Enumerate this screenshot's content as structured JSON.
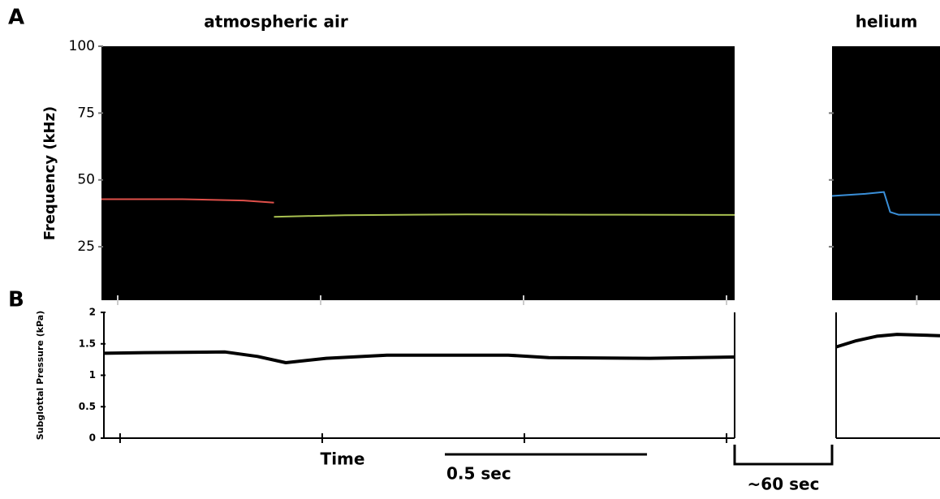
{
  "panel_labels": [
    "A",
    "B"
  ],
  "gap_label": "~60 sec",
  "chart_data": [
    {
      "type": "line",
      "title": "atmospheric air",
      "ylabel": "Frequency (kHz)",
      "xlim": [
        0,
        1.56
      ],
      "xticks": [
        0.04,
        0.54,
        1.04,
        1.54
      ],
      "ylim": [
        5,
        100
      ],
      "yticks": [
        25,
        50,
        75,
        100
      ],
      "background": "#000000",
      "series": [
        {
          "color": "#e0504a",
          "x": [
            0,
            0.2,
            0.35,
            0.425
          ],
          "values": [
            42.8,
            42.8,
            42.3,
            41.5
          ]
        },
        {
          "color": "#a8c050",
          "x": [
            0.425,
            0.6,
            0.9,
            1.2,
            1.56
          ],
          "values": [
            36.2,
            36.8,
            37.1,
            37,
            36.9
          ]
        }
      ]
    },
    {
      "type": "line",
      "title": "helium",
      "xlim": [
        0,
        0.26
      ],
      "xticks": [
        0.204
      ],
      "ylim": [
        5,
        100
      ],
      "yticks": [
        25,
        50,
        75
      ],
      "background": "#000000",
      "series": [
        {
          "color": "#3a8fd8",
          "x": [
            0,
            0.08,
            0.125,
            0.14,
            0.16,
            0.26
          ],
          "values": [
            44,
            44.8,
            45.5,
            38,
            37,
            37
          ]
        }
      ]
    },
    {
      "type": "line",
      "ylabel": "Subglottal Pressure (kPa)",
      "xlabel": "Time",
      "xlim": [
        0,
        1.56
      ],
      "xticks": [
        0.04,
        0.54,
        1.04,
        1.54
      ],
      "ylim": [
        0,
        2
      ],
      "yticks": [
        0,
        0.5,
        1,
        1.5,
        2
      ],
      "scale_bar": {
        "value": 0.5,
        "label": "0.5 sec"
      },
      "series": [
        {
          "color": "#000000",
          "x": [
            0,
            0.1,
            0.3,
            0.38,
            0.45,
            0.55,
            0.7,
            1.0,
            1.1,
            1.35,
            1.56
          ],
          "values": [
            1.35,
            1.36,
            1.37,
            1.3,
            1.2,
            1.27,
            1.32,
            1.32,
            1.28,
            1.27,
            1.29
          ]
        }
      ]
    },
    {
      "type": "line",
      "xlim": [
        0,
        0.256
      ],
      "ylim": [
        0,
        2
      ],
      "series": [
        {
          "color": "#000000",
          "x": [
            0,
            0.05,
            0.1,
            0.15,
            0.256
          ],
          "values": [
            1.45,
            1.55,
            1.62,
            1.65,
            1.63
          ]
        }
      ]
    }
  ]
}
